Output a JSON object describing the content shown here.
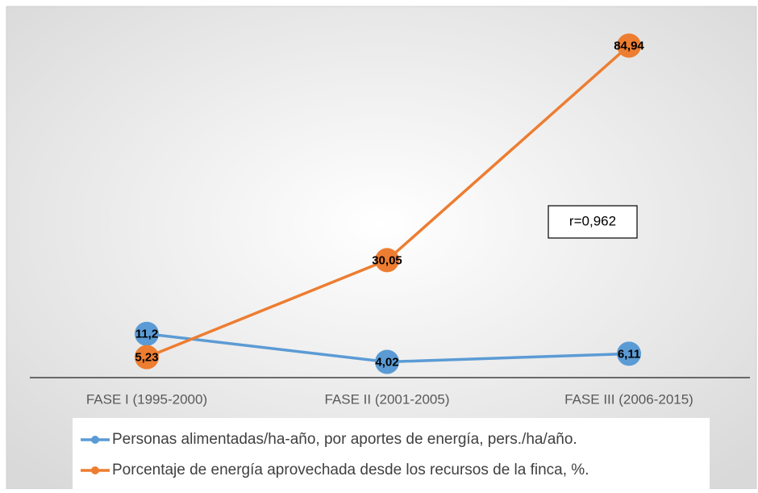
{
  "chart_data": {
    "type": "line",
    "categories": [
      "FASE I (1995-2000)",
      "FASE II (2001-2005)",
      "FASE III (2006-2015)"
    ],
    "series": [
      {
        "name": "Personas alimentadas/ha-año, por aportes de energía, pers./ha/año.",
        "color": "#5b9bd5",
        "values": [
          11.2,
          4.02,
          6.11
        ],
        "value_labels": [
          "11,2",
          "4,02",
          "6,11"
        ]
      },
      {
        "name": "Porcentaje de energía aprovechada desde los recursos de la finca, %.",
        "color": "#ed7d31",
        "values": [
          5.23,
          30.05,
          84.94
        ],
        "value_labels": [
          "5,23",
          "30,05",
          "84,94"
        ]
      }
    ],
    "ylim": [
      0,
      90
    ],
    "annotation": "r=0,962"
  }
}
